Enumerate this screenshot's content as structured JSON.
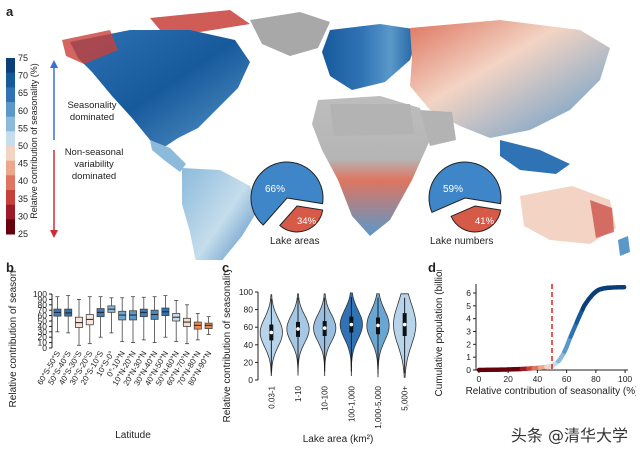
{
  "panels": {
    "a": "a",
    "b": "b",
    "c": "c",
    "d": "d"
  },
  "colorbar": {
    "ticks": [
      "75",
      "70",
      "65",
      "60",
      "55",
      "50",
      "45",
      "40",
      "35",
      "30",
      "25"
    ],
    "colors": [
      "#0b3f7a",
      "#175a9c",
      "#2f73b5",
      "#5a98c9",
      "#8cbadb",
      "#c5ddec",
      "#f3d4c4",
      "#eca88d",
      "#de7560",
      "#c8403a",
      "#9b1b26",
      "#67000d"
    ],
    "ylabel": "Relative contribution of seasonality (%)",
    "label_top": "Seasonality dominated",
    "label_bottom": "Non-seasonal variability dominated",
    "arrow_up_color": "#3a6fd8",
    "arrow_down_color": "#d02a3a"
  },
  "pies": [
    {
      "label": "Lake areas",
      "big": "66%",
      "small": "34%",
      "big_value": 66,
      "small_value": 34
    },
    {
      "label": "Lake numbers",
      "big": "59%",
      "small": "41%",
      "big_value": 59,
      "small_value": 41
    }
  ],
  "chart_data": [
    {
      "type": "box",
      "panel": "b",
      "xlabel": "Latitude",
      "ylabel": "Relative contribution of seasonality (%)",
      "ylim": [
        0,
        100
      ],
      "yticks": [
        0,
        10,
        20,
        30,
        40,
        50,
        60,
        70,
        80,
        90,
        100
      ],
      "categories": [
        "60°S-50°S",
        "50°S-40°S",
        "40°S-30°S",
        "30°S-20°S",
        "20°S-10°S",
        "10°S-0°",
        "0°-10°N",
        "10°N-20°N",
        "20°N-30°N",
        "30°N-40°N",
        "40°N-50°N",
        "50°N-60°N",
        "60°N-70°N",
        "70°N-80°N",
        "80°N-90°N"
      ],
      "boxes": [
        {
          "min": 30,
          "q1": 59,
          "median": 66,
          "q3": 72,
          "max": 95,
          "color": "#3a7bbd"
        },
        {
          "min": 28,
          "q1": 59,
          "median": 65,
          "q3": 72,
          "max": 97,
          "color": "#2f73b5"
        },
        {
          "min": 5,
          "q1": 38,
          "median": 47,
          "q3": 57,
          "max": 90,
          "color": "#f7e2d6"
        },
        {
          "min": 8,
          "q1": 43,
          "median": 53,
          "q3": 62,
          "max": 95,
          "color": "#fae7dc"
        },
        {
          "min": 20,
          "q1": 58,
          "median": 66,
          "q3": 73,
          "max": 95,
          "color": "#3a7bbd"
        },
        {
          "min": 28,
          "q1": 66,
          "median": 72,
          "q3": 78,
          "max": 93,
          "color": "#8cbadb"
        },
        {
          "min": 12,
          "q1": 52,
          "median": 61,
          "q3": 68,
          "max": 93,
          "color": "#6aa6d2"
        },
        {
          "min": 10,
          "q1": 52,
          "median": 61,
          "q3": 69,
          "max": 95,
          "color": "#5a98c9"
        },
        {
          "min": 15,
          "q1": 58,
          "median": 66,
          "q3": 72,
          "max": 94,
          "color": "#3a7bbd"
        },
        {
          "min": 10,
          "q1": 53,
          "median": 62,
          "q3": 70,
          "max": 95,
          "color": "#4a8ac3"
        },
        {
          "min": 20,
          "q1": 60,
          "median": 67,
          "q3": 74,
          "max": 97,
          "color": "#2f73b5"
        },
        {
          "min": 12,
          "q1": 50,
          "median": 57,
          "q3": 64,
          "max": 88,
          "color": "#c5ddec"
        },
        {
          "min": 8,
          "q1": 40,
          "median": 48,
          "q3": 55,
          "max": 80,
          "color": "#f6dccd"
        },
        {
          "min": 15,
          "q1": 35,
          "median": 42,
          "q3": 48,
          "max": 64,
          "color": "#f08a4a"
        },
        {
          "min": 25,
          "q1": 36,
          "median": 42,
          "q3": 46,
          "max": 58,
          "color": "#eb8753"
        }
      ]
    },
    {
      "type": "violin",
      "panel": "c",
      "xlabel": "Lake area (km²)",
      "ylabel": "Relative contribution of seasonality (%)",
      "ylim": [
        0,
        100
      ],
      "yticks": [
        0,
        20,
        40,
        60,
        80,
        100
      ],
      "categories": [
        "0.03-1",
        "1-10",
        "10-100",
        "100-1,000",
        "1,000-5,000",
        "5,000+"
      ],
      "violins": [
        {
          "min": 5,
          "q1": 45,
          "median": 54,
          "q3": 63,
          "max": 97,
          "color": "#b8d4ea"
        },
        {
          "min": 5,
          "q1": 49,
          "median": 58,
          "q3": 66,
          "max": 98,
          "color": "#a6c8e4"
        },
        {
          "min": 5,
          "q1": 50,
          "median": 59,
          "q3": 67,
          "max": 98,
          "color": "#98bfdf"
        },
        {
          "min": 5,
          "q1": 54,
          "median": 63,
          "q3": 72,
          "max": 99,
          "color": "#2f73b5"
        },
        {
          "min": 3,
          "q1": 52,
          "median": 62,
          "q3": 71,
          "max": 98,
          "color": "#6aa6d2"
        },
        {
          "min": 3,
          "q1": 50,
          "median": 63,
          "q3": 76,
          "max": 98,
          "color": "#b8d4ea"
        }
      ]
    },
    {
      "type": "line",
      "panel": "d",
      "xlabel": "Relative contribution of seasonality (%)",
      "ylabel": "Cumulative population (billions)",
      "xlim": [
        -2,
        102
      ],
      "ylim": [
        0,
        6.7
      ],
      "xticks": [
        0,
        20,
        40,
        60,
        80,
        100
      ],
      "yticks": [
        0,
        1,
        2,
        3,
        4,
        5,
        6
      ],
      "threshold": 50,
      "threshold_color": "#e03020",
      "series": [
        {
          "x": [
            0,
            5,
            10,
            15,
            20,
            25,
            30,
            35,
            40,
            45,
            48,
            50,
            52,
            55,
            58,
            60,
            62,
            65,
            68,
            70,
            72,
            75,
            78,
            80,
            82,
            85,
            88,
            90,
            95,
            100
          ],
          "y": [
            0,
            0.01,
            0.02,
            0.03,
            0.04,
            0.06,
            0.08,
            0.12,
            0.16,
            0.22,
            0.27,
            0.32,
            0.45,
            0.75,
            1.3,
            1.8,
            2.4,
            3.2,
            4.0,
            4.5,
            5.0,
            5.5,
            5.9,
            6.1,
            6.25,
            6.35,
            6.4,
            6.42,
            6.44,
            6.45
          ]
        }
      ]
    }
  ],
  "watermark": "头条 @清华大学"
}
